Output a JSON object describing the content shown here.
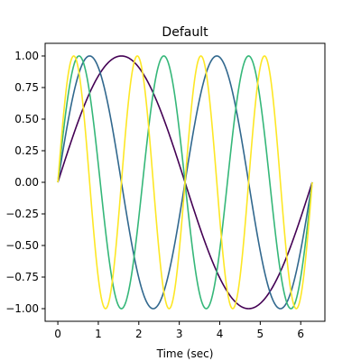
{
  "chart_data": {
    "type": "line",
    "title": "Default",
    "xlabel": "Time (sec)",
    "ylabel": "",
    "xlim": [
      -0.314,
      6.597
    ],
    "ylim": [
      -1.1,
      1.1
    ],
    "xticks": [
      0,
      1,
      2,
      3,
      4,
      5,
      6
    ],
    "yticks": [
      -1.0,
      -0.75,
      -0.5,
      -0.25,
      0.0,
      0.25,
      0.5,
      0.75,
      1.0
    ],
    "xtick_labels": [
      "0",
      "1",
      "2",
      "3",
      "4",
      "5",
      "6"
    ],
    "ytick_labels": [
      "−1.00",
      "−0.75",
      "−0.50",
      "−0.25",
      "0.00",
      "0.25",
      "0.50",
      "0.75",
      "1.00"
    ],
    "grid": false,
    "x_range": [
      0,
      6.283
    ],
    "series": [
      {
        "function": "sin(1·t)",
        "frequency": 1,
        "color": "#440154"
      },
      {
        "function": "sin(2·t)",
        "frequency": 2,
        "color": "#31688e"
      },
      {
        "function": "sin(3·t)",
        "frequency": 3,
        "color": "#35b779"
      },
      {
        "function": "sin(4·t)",
        "frequency": 4,
        "color": "#fde725"
      }
    ]
  }
}
